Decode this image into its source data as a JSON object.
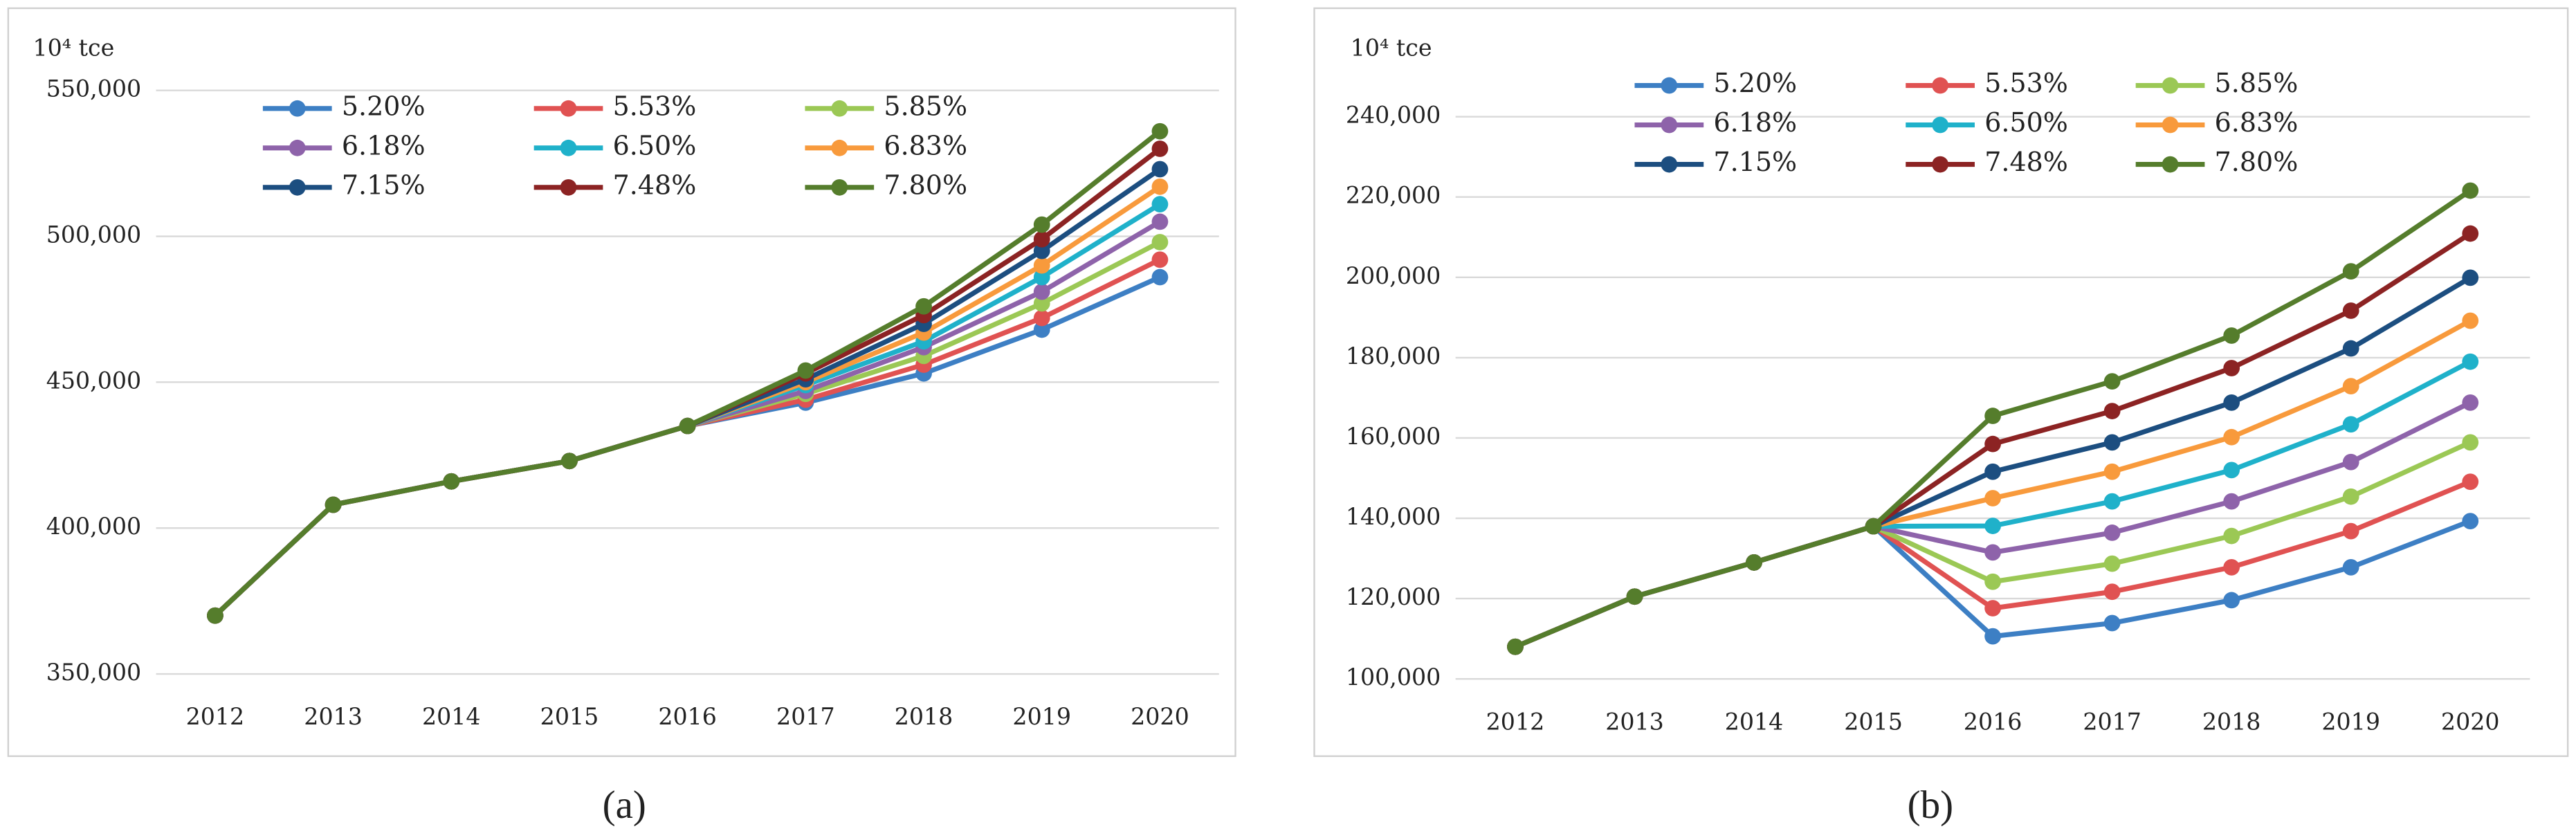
{
  "chart_data": [
    {
      "type": "line",
      "caption": "(a)",
      "y_label": "10⁴ tce",
      "categories": [
        "2012",
        "2013",
        "2014",
        "2015",
        "2016",
        "2017",
        "2018",
        "2019",
        "2020"
      ],
      "ylim": [
        350000,
        550000
      ],
      "yticks": [
        {
          "value": 350000,
          "label": "350,000"
        },
        {
          "value": 400000,
          "label": "400,000"
        },
        {
          "value": 450000,
          "label": "450,000"
        },
        {
          "value": 500000,
          "label": "500,000"
        },
        {
          "value": 550000,
          "label": "550,000"
        }
      ],
      "grid": true,
      "legend": "upper-left",
      "series": [
        {
          "name": "5.20%",
          "color": "#3d7fc4",
          "values": [
            370000,
            408000,
            416000,
            423000,
            435000,
            443000,
            453000,
            468000,
            486000
          ]
        },
        {
          "name": "5.53%",
          "color": "#e05252",
          "values": [
            370000,
            408000,
            416000,
            423000,
            435000,
            444000,
            456000,
            472000,
            492000
          ]
        },
        {
          "name": "5.85%",
          "color": "#9bc855",
          "values": [
            370000,
            408000,
            416000,
            423000,
            435000,
            446000,
            459000,
            477000,
            498000
          ]
        },
        {
          "name": "6.18%",
          "color": "#8e63aa",
          "values": [
            370000,
            408000,
            416000,
            423000,
            435000,
            447000,
            462000,
            481000,
            505000
          ]
        },
        {
          "name": "6.50%",
          "color": "#1fb1ca",
          "values": [
            370000,
            408000,
            416000,
            423000,
            435000,
            449000,
            464000,
            486000,
            511000
          ]
        },
        {
          "name": "6.83%",
          "color": "#f89a3c",
          "values": [
            370000,
            408000,
            416000,
            423000,
            435000,
            450000,
            467000,
            490000,
            517000
          ]
        },
        {
          "name": "7.15%",
          "color": "#1c4e80",
          "values": [
            370000,
            408000,
            416000,
            423000,
            435000,
            451000,
            470000,
            495000,
            523000
          ]
        },
        {
          "name": "7.48%",
          "color": "#8c2323",
          "values": [
            370000,
            408000,
            416000,
            423000,
            435000,
            453000,
            473000,
            499000,
            530000
          ]
        },
        {
          "name": "7.80%",
          "color": "#557d2c",
          "values": [
            370000,
            408000,
            416000,
            423000,
            435000,
            454000,
            476000,
            504000,
            536000
          ]
        }
      ]
    },
    {
      "type": "line",
      "caption": "(b)",
      "y_label": "10⁴ tce",
      "categories": [
        "2012",
        "2013",
        "2014",
        "2015",
        "2016",
        "2017",
        "2018",
        "2019",
        "2020"
      ],
      "ylim": [
        100000,
        240000
      ],
      "yticks": [
        {
          "value": 100000,
          "label": "100,000"
        },
        {
          "value": 120000,
          "label": "120,000"
        },
        {
          "value": 140000,
          "label": "140,000"
        },
        {
          "value": 160000,
          "label": "160,000"
        },
        {
          "value": 180000,
          "label": "180,000"
        },
        {
          "value": 200000,
          "label": "200,000"
        },
        {
          "value": 220000,
          "label": "220,000"
        },
        {
          "value": 240000,
          "label": "240,000"
        }
      ],
      "grid": true,
      "legend": "upper-left",
      "series": [
        {
          "name": "5.20%",
          "color": "#3d7fc4",
          "values": [
            108000,
            120500,
            129000,
            138000,
            110600,
            113900,
            119600,
            127800,
            139300
          ]
        },
        {
          "name": "5.53%",
          "color": "#e05252",
          "values": [
            108000,
            120500,
            129000,
            138000,
            117600,
            121700,
            127800,
            136800,
            149100
          ]
        },
        {
          "name": "5.85%",
          "color": "#9bc855",
          "values": [
            108000,
            120500,
            129000,
            138000,
            124200,
            128700,
            135600,
            145400,
            158900
          ]
        },
        {
          "name": "6.18%",
          "color": "#8e63aa",
          "values": [
            108000,
            120500,
            129000,
            138000,
            131500,
            136400,
            144200,
            154000,
            168800
          ]
        },
        {
          "name": "6.50%",
          "color": "#1fb1ca",
          "values": [
            108000,
            120500,
            129000,
            138000,
            138100,
            144200,
            152000,
            163400,
            179000
          ]
        },
        {
          "name": "6.83%",
          "color": "#f89a3c",
          "values": [
            108000,
            120500,
            129000,
            138000,
            145000,
            151600,
            160200,
            172900,
            189200
          ]
        },
        {
          "name": "7.15%",
          "color": "#1c4e80",
          "values": [
            108000,
            120500,
            129000,
            138000,
            151600,
            158900,
            168800,
            182300,
            199900
          ]
        },
        {
          "name": "7.48%",
          "color": "#8c2323",
          "values": [
            108000,
            120500,
            129000,
            138000,
            158500,
            166700,
            177400,
            191700,
            210900
          ]
        },
        {
          "name": "7.80%",
          "color": "#557d2c",
          "values": [
            108000,
            120500,
            129000,
            138000,
            165500,
            174100,
            185500,
            201500,
            221600
          ]
        }
      ]
    }
  ]
}
